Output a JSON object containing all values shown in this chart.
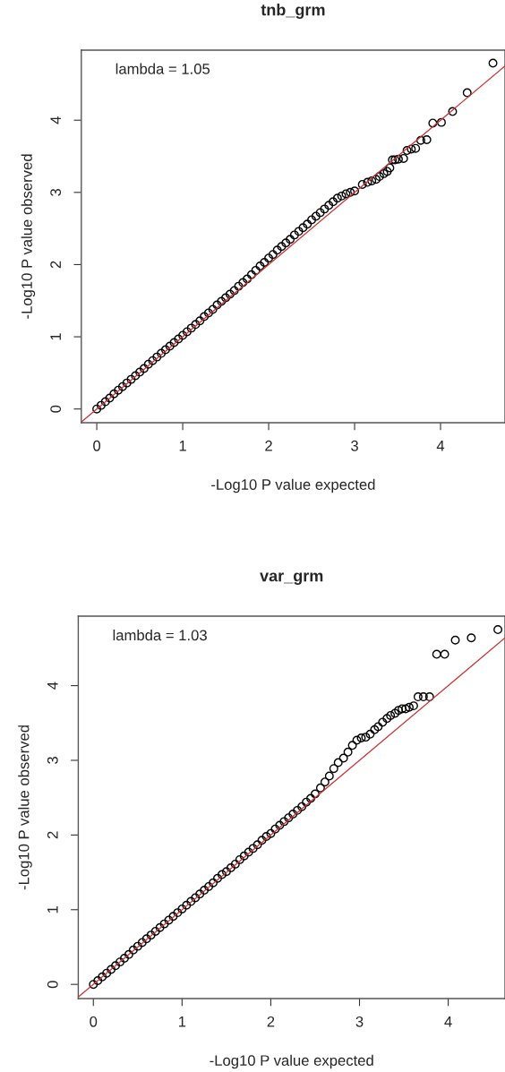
{
  "chart_data": [
    {
      "type": "scatter",
      "title": "tnb_grm",
      "xlabel": "-Log10 P value expected",
      "ylabel": "-Log10 P value observed",
      "annotations": [
        "lambda = 1.05"
      ],
      "xlim": [
        -0.18,
        4.75
      ],
      "ylim": [
        -0.19,
        4.97
      ],
      "xticks": [
        0,
        1,
        2,
        3,
        4
      ],
      "yticks": [
        0,
        1,
        2,
        3,
        4
      ],
      "grid": false,
      "series": [
        {
          "marker": "circle",
          "color": "#000000",
          "x": [
            0,
            0.05,
            0.1,
            0.15,
            0.2,
            0.25,
            0.3,
            0.35,
            0.4,
            0.45,
            0.5,
            0.55,
            0.6,
            0.65,
            0.7,
            0.75,
            0.8,
            0.85,
            0.9,
            0.95,
            1.0,
            1.05,
            1.1,
            1.15,
            1.2,
            1.25,
            1.3,
            1.35,
            1.4,
            1.45,
            1.5,
            1.55,
            1.6,
            1.65,
            1.7,
            1.75,
            1.8,
            1.85,
            1.9,
            1.95,
            2.0,
            2.05,
            2.1,
            2.15,
            2.2,
            2.25,
            2.3,
            2.35,
            2.4,
            2.45,
            2.5,
            2.55,
            2.6,
            2.65,
            2.7,
            2.75,
            2.8,
            2.85,
            2.9,
            2.95,
            3.0,
            3.09,
            3.15,
            3.2,
            3.25,
            3.29,
            3.34,
            3.38,
            3.41,
            3.44,
            3.47,
            3.51,
            3.57,
            3.61,
            3.66,
            3.71,
            3.77,
            3.84,
            3.91,
            4.01,
            4.14,
            4.31,
            4.61
          ],
          "values": [
            0,
            0.05,
            0.1,
            0.15,
            0.21,
            0.26,
            0.31,
            0.36,
            0.41,
            0.46,
            0.51,
            0.56,
            0.62,
            0.67,
            0.72,
            0.77,
            0.82,
            0.87,
            0.92,
            0.97,
            1.02,
            1.07,
            1.12,
            1.17,
            1.22,
            1.28,
            1.33,
            1.38,
            1.44,
            1.49,
            1.54,
            1.59,
            1.64,
            1.7,
            1.75,
            1.8,
            1.86,
            1.92,
            1.98,
            2.03,
            2.09,
            2.14,
            2.2,
            2.25,
            2.3,
            2.35,
            2.41,
            2.46,
            2.51,
            2.56,
            2.62,
            2.67,
            2.72,
            2.77,
            2.82,
            2.87,
            2.92,
            2.95,
            2.98,
            3.0,
            3.02,
            3.11,
            3.14,
            3.16,
            3.18,
            3.22,
            3.26,
            3.29,
            3.34,
            3.45,
            3.45,
            3.46,
            3.47,
            3.58,
            3.6,
            3.61,
            3.72,
            3.73,
            3.96,
            3.97,
            4.12,
            4.38,
            4.79
          ]
        },
        {
          "type": "line",
          "color": "#cc3333",
          "x": [
            -0.18,
            4.75
          ],
          "values": [
            -0.18,
            4.75
          ]
        }
      ]
    },
    {
      "type": "scatter",
      "title": "var_grm",
      "xlabel": "-Log10 P value expected",
      "ylabel": "-Log10 P value observed",
      "annotations": [
        "lambda = 1.03"
      ],
      "xlim": [
        -0.17,
        4.64
      ],
      "ylim": [
        -0.19,
        4.93
      ],
      "xticks": [
        0,
        1,
        2,
        3,
        4
      ],
      "yticks": [
        0,
        1,
        2,
        3,
        4
      ],
      "grid": false,
      "series": [
        {
          "marker": "circle",
          "color": "#000000",
          "x": [
            0,
            0.05,
            0.1,
            0.15,
            0.2,
            0.25,
            0.3,
            0.35,
            0.4,
            0.45,
            0.5,
            0.55,
            0.6,
            0.65,
            0.7,
            0.75,
            0.8,
            0.85,
            0.9,
            0.95,
            1.0,
            1.05,
            1.1,
            1.15,
            1.2,
            1.25,
            1.3,
            1.35,
            1.4,
            1.45,
            1.5,
            1.55,
            1.6,
            1.65,
            1.7,
            1.75,
            1.8,
            1.85,
            1.9,
            1.95,
            2.0,
            2.05,
            2.1,
            2.15,
            2.2,
            2.25,
            2.3,
            2.35,
            2.4,
            2.45,
            2.5,
            2.56,
            2.61,
            2.66,
            2.71,
            2.76,
            2.82,
            2.87,
            2.92,
            2.97,
            3.02,
            3.07,
            3.12,
            3.17,
            3.21,
            3.26,
            3.31,
            3.35,
            3.4,
            3.44,
            3.48,
            3.52,
            3.56,
            3.61,
            3.66,
            3.72,
            3.79,
            3.87,
            3.96,
            4.08,
            4.26,
            4.56
          ],
          "values": [
            0,
            0.05,
            0.1,
            0.15,
            0.2,
            0.25,
            0.3,
            0.35,
            0.4,
            0.46,
            0.51,
            0.56,
            0.61,
            0.66,
            0.71,
            0.76,
            0.81,
            0.86,
            0.91,
            0.96,
            1.01,
            1.06,
            1.11,
            1.16,
            1.21,
            1.26,
            1.31,
            1.36,
            1.42,
            1.47,
            1.51,
            1.56,
            1.61,
            1.67,
            1.72,
            1.77,
            1.82,
            1.87,
            1.93,
            1.98,
            2.02,
            2.08,
            2.13,
            2.18,
            2.23,
            2.28,
            2.33,
            2.38,
            2.44,
            2.49,
            2.55,
            2.63,
            2.71,
            2.79,
            2.89,
            2.97,
            3.03,
            3.11,
            3.2,
            3.27,
            3.3,
            3.31,
            3.35,
            3.41,
            3.45,
            3.51,
            3.56,
            3.6,
            3.63,
            3.67,
            3.69,
            3.69,
            3.71,
            3.73,
            3.85,
            3.85,
            3.85,
            4.42,
            4.42,
            4.61,
            4.64,
            4.75
          ]
        },
        {
          "type": "line",
          "color": "#cc3333",
          "x": [
            -0.17,
            4.64
          ],
          "values": [
            -0.17,
            4.64
          ]
        }
      ]
    }
  ]
}
